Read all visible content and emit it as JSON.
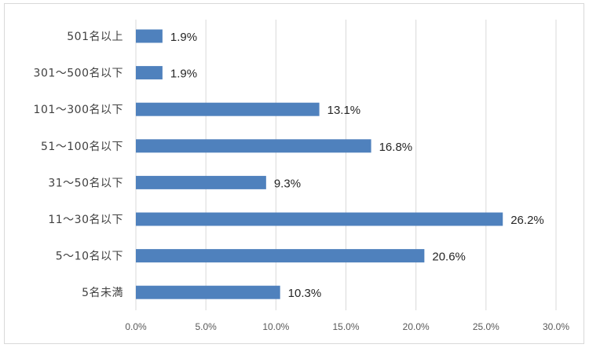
{
  "chart_data": {
    "type": "bar",
    "orientation": "horizontal",
    "categories": [
      "501名以上",
      "301～500名以下",
      "101～300名以下",
      "51～100名以下",
      "31～50名以下",
      "11～30名以下",
      "5～10名以下",
      "5名未満"
    ],
    "values": [
      1.9,
      1.9,
      13.1,
      16.8,
      9.3,
      26.2,
      20.6,
      10.3
    ],
    "data_labels": [
      "1.9%",
      "1.9%",
      "13.1%",
      "16.8%",
      "9.3%",
      "26.2%",
      "20.6%",
      "10.3%"
    ],
    "x_ticks": [
      "0.0%",
      "5.0%",
      "10.0%",
      "15.0%",
      "20.0%",
      "25.0%",
      "30.0%"
    ],
    "xlim": [
      0,
      30
    ],
    "title": "",
    "xlabel": "",
    "ylabel": "",
    "grid": "vertical",
    "legend": "none",
    "colors": {
      "bar": "#4f81bd",
      "grid": "#d9d9d9"
    }
  }
}
